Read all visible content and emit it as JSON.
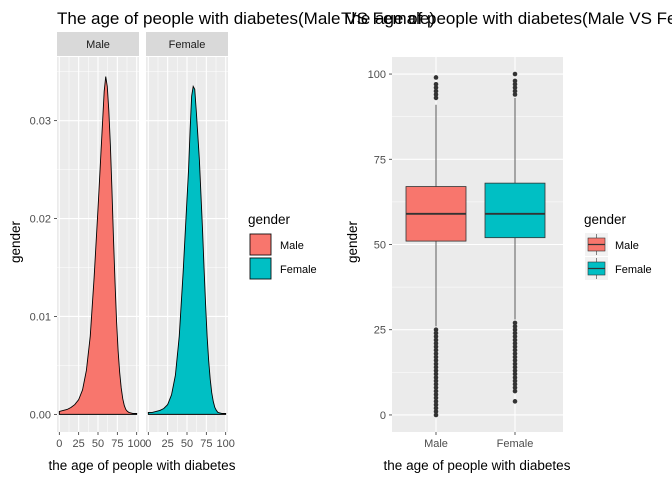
{
  "colors": {
    "male": "#F8766D",
    "female": "#00BFC4",
    "panel": "#EBEBEB",
    "strip": "#D9D9D9",
    "grid": "#FFFFFF"
  },
  "chart_data": [
    {
      "type": "area",
      "title": "The age of people with diabetes(Male VS Female)",
      "xlabel": "the age of people with diabetes",
      "ylabel": "gender",
      "xlim": [
        -3,
        103
      ],
      "ylim": [
        -0.0018,
        0.0365
      ],
      "x_ticks": [
        0,
        25,
        50,
        75,
        100
      ],
      "x_tick_labels": [
        "0",
        "25",
        "50",
        "75",
        "100"
      ],
      "y_ticks": [
        0.0,
        0.01,
        0.02,
        0.03
      ],
      "y_tick_labels": [
        "0.00",
        "0.01",
        "0.02",
        "0.03"
      ],
      "grid": true,
      "legend": {
        "title": "gender",
        "position": "right",
        "entries": [
          "Male",
          "Female"
        ]
      },
      "facets": [
        {
          "label": "Male",
          "x": [
            0,
            5,
            10,
            15,
            20,
            25,
            30,
            35,
            40,
            45,
            50,
            52,
            54,
            56,
            58,
            60,
            62,
            64,
            66,
            68,
            70,
            72,
            74,
            76,
            78,
            80,
            82,
            84,
            86,
            88,
            90,
            95,
            100
          ],
          "values": [
            0.0003,
            0.0004,
            0.0005,
            0.0007,
            0.001,
            0.0015,
            0.0025,
            0.0045,
            0.008,
            0.014,
            0.021,
            0.024,
            0.027,
            0.03,
            0.033,
            0.0345,
            0.0335,
            0.031,
            0.0275,
            0.023,
            0.018,
            0.0135,
            0.0095,
            0.0065,
            0.0043,
            0.0027,
            0.0016,
            0.0009,
            0.0005,
            0.0003,
            0.0002,
            0.0001,
            0.0001
          ]
        },
        {
          "label": "Female",
          "x": [
            0,
            5,
            10,
            15,
            20,
            25,
            30,
            35,
            40,
            45,
            50,
            52,
            54,
            56,
            58,
            60,
            62,
            64,
            66,
            68,
            70,
            72,
            74,
            76,
            78,
            80,
            82,
            84,
            86,
            88,
            90,
            95,
            100
          ],
          "values": [
            0.0002,
            0.0002,
            0.0003,
            0.0004,
            0.0006,
            0.001,
            0.002,
            0.004,
            0.008,
            0.0145,
            0.022,
            0.025,
            0.029,
            0.0325,
            0.0335,
            0.0332,
            0.031,
            0.0285,
            0.026,
            0.0225,
            0.019,
            0.015,
            0.0113,
            0.008,
            0.0055,
            0.0036,
            0.0022,
            0.0013,
            0.0007,
            0.0004,
            0.0002,
            0.0001,
            0.0001
          ]
        }
      ]
    },
    {
      "type": "box",
      "title": "The age of people with diabetes(Male VS Female)",
      "xlabel": "the age of people with diabetes",
      "ylabel": "gender",
      "ylim": [
        -5,
        105
      ],
      "y_ticks": [
        0,
        25,
        50,
        75,
        100
      ],
      "y_tick_labels": [
        "0",
        "25",
        "50",
        "75",
        "100"
      ],
      "grid": true,
      "categories": [
        "Male",
        "Female"
      ],
      "legend": {
        "title": "gender",
        "position": "right",
        "entries": [
          "Male",
          "Female"
        ]
      },
      "boxes": [
        {
          "name": "Male",
          "q1": 51,
          "median": 59,
          "q3": 67,
          "whisker_low": 26,
          "whisker_high": 91,
          "outliers": [
            93,
            94,
            95,
            96,
            97,
            99,
            25,
            24,
            23,
            22,
            21,
            20,
            19,
            18,
            17,
            16,
            15,
            14,
            13,
            12,
            11,
            10,
            9,
            8,
            7,
            6,
            5,
            4,
            3,
            2,
            1,
            0
          ]
        },
        {
          "name": "Female",
          "q1": 52,
          "median": 59,
          "q3": 68,
          "whisker_low": 28,
          "whisker_high": 93,
          "outliers": [
            94,
            95,
            96,
            97,
            98,
            100,
            27,
            26,
            25,
            24,
            23,
            22,
            21,
            20,
            19,
            18,
            17,
            16,
            15,
            14,
            13,
            12,
            11,
            10,
            9,
            8,
            7,
            4
          ]
        }
      ]
    }
  ]
}
